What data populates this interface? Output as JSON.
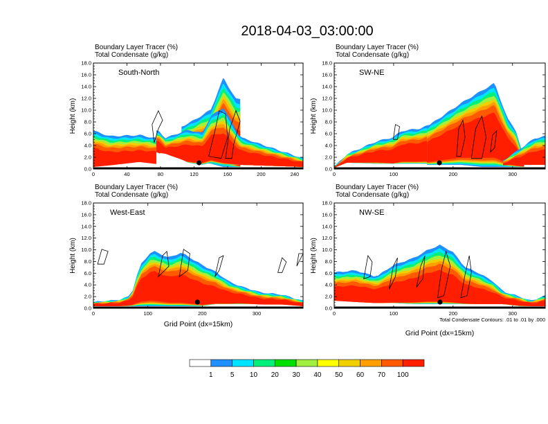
{
  "figure": {
    "title": "2018-04-03_03:00:00",
    "note": "Total Condensate Contours: .01 to .01 by .000"
  },
  "chart_data": [
    {
      "type": "heatmap",
      "label": "South-North",
      "title_line1": "Boundary Layer Tracer   (%)",
      "title_line2": "Total Condensate   (g/kg)",
      "ylabel": "Height (km)",
      "xlabel": "",
      "xlim": [
        0,
        250
      ],
      "ylim": [
        0,
        18
      ],
      "xticks": [
        "0",
        "40",
        "80",
        "120",
        "160",
        "200",
        "240"
      ],
      "yticks": [
        "0.0",
        "2.0",
        "4.0",
        "6.0",
        "8.0",
        "10.0",
        "12.0",
        "14.0",
        "16.0",
        "18.0"
      ],
      "shading": "Boundary Layer Tracer (%)",
      "contours": "Total Condensate (g/kg)",
      "marker_x": 126
    },
    {
      "type": "heatmap",
      "label": "SW-NE",
      "title_line1": "Boundary Layer Tracer   (%)",
      "title_line2": "Total Condensate   (g/kg)",
      "ylabel": "Height (km)",
      "xlabel": "",
      "xlim": [
        0,
        355
      ],
      "ylim": [
        0,
        18
      ],
      "xticks": [
        "0",
        "100",
        "200",
        "300"
      ],
      "yticks": [
        "0.0",
        "2.0",
        "4.0",
        "6.0",
        "8.0",
        "10.0",
        "12.0",
        "14.0",
        "16.0",
        "18.0"
      ],
      "shading": "Boundary Layer Tracer (%)",
      "contours": "Total Condensate (g/kg)",
      "marker_x": 177
    },
    {
      "type": "heatmap",
      "label": "West-East",
      "title_line1": "Boundary Layer Tracer   (%)",
      "title_line2": "Total Condensate   (g/kg)",
      "ylabel": "Height (km)",
      "xlabel": "Grid Point (dx=15km)",
      "xlim": [
        0,
        385
      ],
      "ylim": [
        0,
        18
      ],
      "xticks": [
        "0",
        "100",
        "200",
        "300"
      ],
      "yticks": [
        "0.0",
        "2.0",
        "4.0",
        "6.0",
        "8.0",
        "10.0",
        "12.0",
        "14.0",
        "16.0",
        "18.0"
      ],
      "shading": "Boundary Layer Tracer (%)",
      "contours": "Total Condensate (g/kg)",
      "marker_x": 191
    },
    {
      "type": "heatmap",
      "label": "NW-SE",
      "title_line1": "Boundary Layer Tracer   (%)",
      "title_line2": "Total Condensate   (g/kg)",
      "ylabel": "Height (km)",
      "xlabel": "Grid Point (dx=15km)",
      "xlim": [
        0,
        355
      ],
      "ylim": [
        0,
        18
      ],
      "xticks": [
        "0",
        "100",
        "200",
        "300"
      ],
      "yticks": [
        "0.0",
        "2.0",
        "4.0",
        "6.0",
        "8.0",
        "10.0",
        "12.0",
        "14.0",
        "16.0",
        "18.0"
      ],
      "shading": "Boundary Layer Tracer (%)",
      "contours": "Total Condensate (g/kg)",
      "marker_x": 178
    }
  ],
  "colorbar": {
    "labels": [
      "1",
      "5",
      "10",
      "20",
      "30",
      "40",
      "50",
      "60",
      "70",
      "100"
    ],
    "colors": [
      "#ffffff",
      "#1e90ff",
      "#00e5ff",
      "#00f07a",
      "#00e000",
      "#a0f040",
      "#ffff00",
      "#f0d000",
      "#ffa000",
      "#ff5a00",
      "#ff1e00"
    ]
  }
}
